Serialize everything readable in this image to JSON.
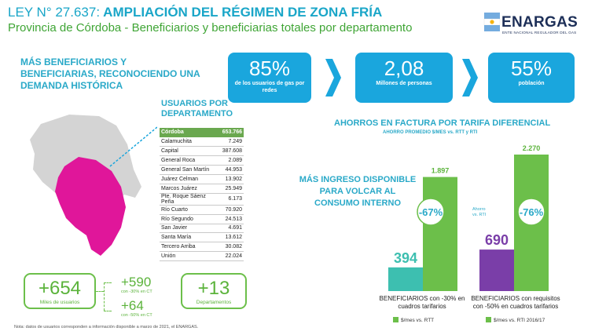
{
  "header": {
    "title_prefix": "LEY N° 27.637:",
    "title_rest": "AMPLIACIÓN DEL RÉGIMEN DE ZONA FRÍA",
    "subtitle": "Provincia de Córdoba - Beneficiarios y beneficiarias totales por departamento"
  },
  "logo": {
    "name": "ENARGAS",
    "tagline": "ENTE NACIONAL REGULADOR DEL GAS"
  },
  "headline": "MÁS BENEFICIARIOS Y BENEFICIARIAS, RECONOCIENDO UNA DEMANDA HISTÓRICA",
  "kpis": [
    {
      "value": "85%",
      "label": "de  los usuarios de gas por redes"
    },
    {
      "value": "2,08",
      "label": "Millones de personas"
    },
    {
      "value": "55%",
      "label": "población"
    }
  ],
  "table": {
    "title": "USUARIOS POR DEPARTAMENTO",
    "header": {
      "name": "Córdoba",
      "value": "653.766"
    },
    "rows": [
      {
        "name": "Calamuchita",
        "value": "7.249"
      },
      {
        "name": "Capital",
        "value": "387.608"
      },
      {
        "name": "General Roca",
        "value": "2.089"
      },
      {
        "name": "General San Martín",
        "value": "44.953"
      },
      {
        "name": "Juárez Celman",
        "value": "13.902"
      },
      {
        "name": "Marcos Juárez",
        "value": "25.949"
      },
      {
        "name": "Pte. Roque Sáenz Peña",
        "value": "6.173"
      },
      {
        "name": "Río Cuarto",
        "value": "70.920"
      },
      {
        "name": "Río Segundo",
        "value": "24.513"
      },
      {
        "name": "San Javier",
        "value": "4.691"
      },
      {
        "name": "Santa María",
        "value": "13.612"
      },
      {
        "name": "Tercero Arriba",
        "value": "30.082"
      },
      {
        "name": "Unión",
        "value": "22.024"
      }
    ]
  },
  "totals": {
    "main": {
      "value": "+654",
      "label": "Miles de usuarios"
    },
    "split": [
      {
        "value": "+590",
        "label": "con -30% en CT"
      },
      {
        "value": "+64",
        "label": "con -50% en CT"
      }
    ],
    "departamentos": {
      "value": "+13",
      "label": "Departamentos"
    }
  },
  "ahorro": {
    "title": "AHORROS EN FACTURA POR TARIFA DIFERENCIAL",
    "subtitle": "AHORRO PROMEDIO $/MES vs. RTT y RTI"
  },
  "mas_ingreso": "MÁS INGRESO DISPONIBLE PARA VOLCAR AL CONSUMO INTERNO",
  "chart_data": {
    "type": "bar",
    "categories": [
      "BENEFICIARIOS con -30% en cuadros tarifarios",
      "BENEFICIARIOS con requisitos con -50% en cuadros tarifarios"
    ],
    "groups": [
      {
        "category": "BENEFICIARIOS con -30% en cuadros tarifarios",
        "beneficiario_value": 394,
        "beneficiario_label": "394",
        "beneficiario_color": "#3dbfb0",
        "reference_value": 1897,
        "reference_label": "1.897",
        "reference_color": "#6cbf4a",
        "ahorro_pct": "-67%",
        "legend": "$/mes vs. RTT"
      },
      {
        "category": "BENEFICIARIOS con requisitos con -50% en cuadros tarifarios",
        "beneficiario_value": 690,
        "beneficiario_label": "690",
        "beneficiario_color": "#7a3ea8",
        "reference_value": 2270,
        "reference_label": "2.270",
        "reference_color": "#6cbf4a",
        "ahorro_pct": "-76%",
        "legend": "$/mes vs. RTI 2016/17"
      }
    ],
    "ahorro_note": "Ahorro vs. RTI",
    "ylim": [
      0,
      2270
    ]
  },
  "footnote": "Nota:  datos de usuarios corresponden a información disponible a marzo de 2021, el ENARGAS.",
  "colors": {
    "title_blue": "#1aa6c8",
    "green": "#3fa535",
    "kpi_blue": "#1aa6dd",
    "map_magenta": "#e0169a",
    "map_grey": "#d4d4d4"
  }
}
